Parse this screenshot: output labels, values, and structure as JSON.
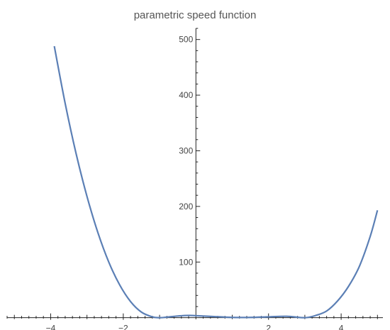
{
  "chart_data": {
    "type": "line",
    "title": "parametric speed function",
    "xlabel": "",
    "ylabel": "",
    "xlim": [
      -5.2,
      5.15
    ],
    "ylim": [
      -3,
      520
    ],
    "grid": false,
    "x_ticks": [
      -4,
      -2,
      0,
      2,
      4
    ],
    "x_tick_labels": [
      "-4",
      "-2",
      "",
      "2",
      "4"
    ],
    "y_ticks": [
      100,
      200,
      300,
      400,
      500
    ],
    "y_tick_labels": [
      "100",
      "200",
      "300",
      "400",
      "500"
    ],
    "line_color": "#5b7fb5",
    "series": [
      {
        "x": [
          -3.9,
          -3.6,
          -3.3,
          -3.0,
          -2.7,
          -2.4,
          -2.1,
          -1.8,
          -1.5,
          -1.2,
          -1.0,
          -0.8,
          -0.5,
          -0.2,
          0.0,
          0.5,
          1.0,
          1.5,
          2.0,
          2.5,
          3.0,
          3.3,
          3.6,
          3.9,
          4.2,
          4.5,
          4.8,
          5.0
        ],
        "y": [
          488,
          385,
          295,
          218,
          153,
          100,
          59,
          29,
          10,
          1.5,
          0,
          1,
          3,
          4,
          3.5,
          2,
          0.5,
          0.5,
          1.5,
          2.5,
          0,
          4,
          12,
          30,
          56,
          92,
          146,
          193
        ]
      }
    ]
  }
}
